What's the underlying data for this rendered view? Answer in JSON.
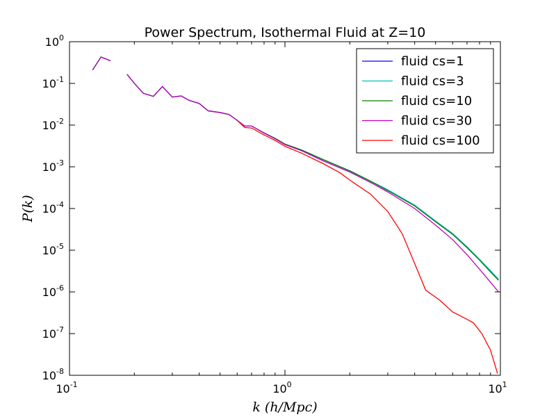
{
  "chart_data": {
    "type": "line",
    "title": "Power Spectrum, Isothermal Fluid at Z=10",
    "xlabel": "k (h/Mpc)",
    "ylabel": "P(k)",
    "xscale": "log",
    "yscale": "log",
    "xlim": [
      0.1,
      10
    ],
    "ylim": [
      1e-08,
      1
    ],
    "grid": false,
    "legend_position": "top-right",
    "x_ticks": [
      {
        "base": "10",
        "exp": "-1",
        "value": 0.1
      },
      {
        "base": "10",
        "exp": "0",
        "value": 1
      },
      {
        "base": "10",
        "exp": "1",
        "value": 10
      }
    ],
    "y_ticks": [
      {
        "base": "10",
        "exp": "0",
        "value": 1
      },
      {
        "base": "10",
        "exp": "-1",
        "value": 0.1
      },
      {
        "base": "10",
        "exp": "-2",
        "value": 0.01
      },
      {
        "base": "10",
        "exp": "-3",
        "value": 0.001
      },
      {
        "base": "10",
        "exp": "-4",
        "value": 0.0001
      },
      {
        "base": "10",
        "exp": "-5",
        "value": 1e-05
      },
      {
        "base": "10",
        "exp": "-6",
        "value": 1e-06
      },
      {
        "base": "10",
        "exp": "-7",
        "value": 1e-07
      },
      {
        "base": "10",
        "exp": "-8",
        "value": 1e-08
      }
    ],
    "series": [
      {
        "name": "fluid cs=1",
        "color": "#0000ff",
        "segments": [
          [
            [
              0.128,
              0.21
            ],
            [
              0.14,
              0.43
            ],
            [
              0.155,
              0.35
            ]
          ],
          [
            [
              0.185,
              0.165
            ],
            [
              0.2,
              0.1
            ],
            [
              0.22,
              0.058
            ],
            [
              0.245,
              0.049
            ],
            [
              0.27,
              0.084
            ],
            [
              0.3,
              0.047
            ],
            [
              0.33,
              0.05
            ],
            [
              0.36,
              0.039
            ],
            [
              0.4,
              0.033
            ],
            [
              0.44,
              0.022
            ],
            [
              0.5,
              0.02
            ],
            [
              0.55,
              0.018
            ],
            [
              0.6,
              0.013
            ],
            [
              0.65,
              0.0095
            ],
            [
              0.7,
              0.0095
            ],
            [
              0.8,
              0.0065
            ],
            [
              0.9,
              0.0048
            ],
            [
              1.0,
              0.0035
            ],
            [
              1.2,
              0.0025
            ],
            [
              1.5,
              0.0015
            ],
            [
              2.0,
              0.0008
            ],
            [
              2.5,
              0.00045
            ],
            [
              3.0,
              0.00028
            ],
            [
              4.0,
              0.00012
            ],
            [
              5.0,
              5e-05
            ],
            [
              6.0,
              2.5e-05
            ],
            [
              7.0,
              1.2e-05
            ],
            [
              8.0,
              6e-06
            ],
            [
              9.0,
              3.2e-06
            ],
            [
              9.8,
              2e-06
            ]
          ]
        ]
      },
      {
        "name": "fluid cs=3",
        "color": "#00bfbf",
        "segments": [
          [
            [
              0.128,
              0.21
            ],
            [
              0.14,
              0.43
            ],
            [
              0.155,
              0.35
            ]
          ],
          [
            [
              0.185,
              0.165
            ],
            [
              0.2,
              0.1
            ],
            [
              0.22,
              0.058
            ],
            [
              0.245,
              0.049
            ],
            [
              0.27,
              0.084
            ],
            [
              0.3,
              0.047
            ],
            [
              0.33,
              0.05
            ],
            [
              0.36,
              0.039
            ],
            [
              0.4,
              0.033
            ],
            [
              0.44,
              0.022
            ],
            [
              0.5,
              0.02
            ],
            [
              0.55,
              0.018
            ],
            [
              0.6,
              0.013
            ],
            [
              0.65,
              0.0095
            ],
            [
              0.7,
              0.0095
            ],
            [
              0.8,
              0.0065
            ],
            [
              0.9,
              0.0048
            ],
            [
              1.0,
              0.0035
            ],
            [
              1.2,
              0.0025
            ],
            [
              1.5,
              0.0015
            ],
            [
              2.0,
              0.0008
            ],
            [
              2.5,
              0.00045
            ],
            [
              3.0,
              0.00028
            ],
            [
              4.0,
              0.00012
            ],
            [
              5.0,
              5e-05
            ],
            [
              6.0,
              2.5e-05
            ],
            [
              7.0,
              1.2e-05
            ],
            [
              8.0,
              6e-06
            ],
            [
              9.0,
              3.2e-06
            ],
            [
              9.8,
              2e-06
            ]
          ]
        ]
      },
      {
        "name": "fluid cs=10",
        "color": "#008000",
        "segments": [
          [
            [
              0.128,
              0.21
            ],
            [
              0.14,
              0.43
            ],
            [
              0.155,
              0.35
            ]
          ],
          [
            [
              0.185,
              0.165
            ],
            [
              0.2,
              0.1
            ],
            [
              0.22,
              0.058
            ],
            [
              0.245,
              0.049
            ],
            [
              0.27,
              0.084
            ],
            [
              0.3,
              0.047
            ],
            [
              0.33,
              0.05
            ],
            [
              0.36,
              0.039
            ],
            [
              0.4,
              0.033
            ],
            [
              0.44,
              0.022
            ],
            [
              0.5,
              0.02
            ],
            [
              0.55,
              0.018
            ],
            [
              0.6,
              0.013
            ],
            [
              0.65,
              0.0095
            ],
            [
              0.7,
              0.0095
            ],
            [
              0.8,
              0.0065
            ],
            [
              0.9,
              0.0048
            ],
            [
              1.0,
              0.0035
            ],
            [
              1.2,
              0.0025
            ],
            [
              1.5,
              0.0015
            ],
            [
              2.0,
              0.0008
            ],
            [
              2.5,
              0.00045
            ],
            [
              3.0,
              0.00027
            ],
            [
              4.0,
              0.000115
            ],
            [
              5.0,
              4.8e-05
            ],
            [
              6.0,
              2.4e-05
            ],
            [
              7.0,
              1.15e-05
            ],
            [
              8.0,
              5.8e-06
            ],
            [
              9.0,
              3e-06
            ],
            [
              9.8,
              1.9e-06
            ]
          ]
        ]
      },
      {
        "name": "fluid cs=30",
        "color": "#bf00bf",
        "segments": [
          [
            [
              0.128,
              0.21
            ],
            [
              0.14,
              0.43
            ],
            [
              0.155,
              0.35
            ]
          ],
          [
            [
              0.185,
              0.165
            ],
            [
              0.2,
              0.1
            ],
            [
              0.22,
              0.058
            ],
            [
              0.245,
              0.049
            ],
            [
              0.27,
              0.084
            ],
            [
              0.3,
              0.047
            ],
            [
              0.33,
              0.05
            ],
            [
              0.36,
              0.039
            ],
            [
              0.4,
              0.033
            ],
            [
              0.44,
              0.022
            ],
            [
              0.5,
              0.02
            ],
            [
              0.55,
              0.018
            ],
            [
              0.6,
              0.013
            ],
            [
              0.65,
              0.0095
            ],
            [
              0.7,
              0.0095
            ],
            [
              0.8,
              0.0064
            ],
            [
              0.9,
              0.0047
            ],
            [
              1.0,
              0.0034
            ],
            [
              1.2,
              0.0024
            ],
            [
              1.5,
              0.0014
            ],
            [
              2.0,
              0.00075
            ],
            [
              2.5,
              0.00042
            ],
            [
              3.0,
              0.00025
            ],
            [
              4.0,
              0.0001
            ],
            [
              5.0,
              4e-05
            ],
            [
              6.0,
              1.8e-05
            ],
            [
              7.0,
              7.8e-06
            ],
            [
              8.0,
              3.5e-06
            ],
            [
              9.0,
              1.7e-06
            ],
            [
              9.8,
              1e-06
            ]
          ]
        ]
      },
      {
        "name": "fluid cs=100",
        "color": "#ff0000",
        "segments": [
          [
            [
              0.6,
              0.013
            ],
            [
              0.65,
              0.0088
            ],
            [
              0.7,
              0.0085
            ],
            [
              0.8,
              0.0058
            ],
            [
              0.9,
              0.0043
            ],
            [
              1.0,
              0.0031
            ],
            [
              1.2,
              0.0021
            ],
            [
              1.5,
              0.0012
            ],
            [
              1.8,
              0.00072
            ],
            [
              2.0,
              0.00048
            ],
            [
              2.5,
              0.00022
            ],
            [
              3.0,
              8.5e-05
            ],
            [
              3.5,
              2.5e-05
            ],
            [
              4.0,
              4.8e-06
            ],
            [
              4.5,
              1.1e-06
            ],
            [
              5.2,
              6.5e-07
            ],
            [
              6.0,
              3.3e-07
            ],
            [
              7.0,
              2.2e-07
            ],
            [
              7.5,
              1.8e-07
            ],
            [
              8.2,
              1e-07
            ],
            [
              9.0,
              4e-08
            ],
            [
              9.7,
              1.1e-08
            ]
          ]
        ]
      }
    ]
  }
}
